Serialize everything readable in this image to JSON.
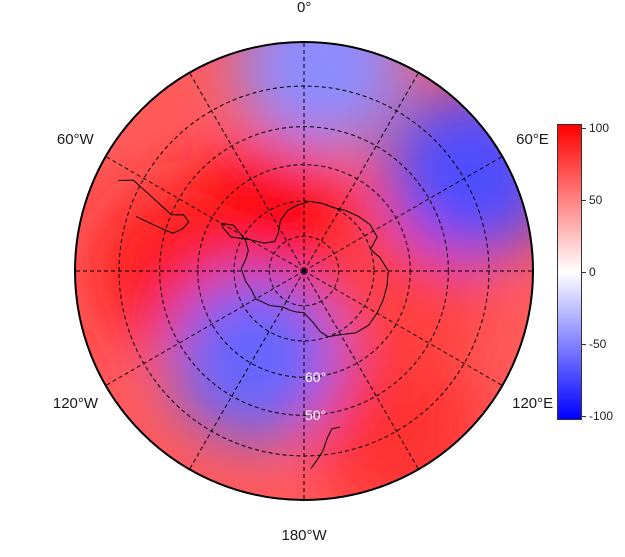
{
  "map": {
    "projection": "south-polar-stereographic",
    "longitude_labels": [
      {
        "text": "0°",
        "lon": 0
      },
      {
        "text": "60°E",
        "lon": 60
      },
      {
        "text": "120°E",
        "lon": 120
      },
      {
        "text": "180°W",
        "lon": 180
      },
      {
        "text": "120°W",
        "lon": -120
      },
      {
        "text": "60°W",
        "lon": -60
      }
    ],
    "latitude_labels": [
      {
        "text": "60°",
        "lat": -60
      },
      {
        "text": "50°",
        "lat": -50
      }
    ],
    "latitude_circles": [
      -80,
      -70,
      -60,
      -50,
      -40
    ],
    "meridians_deg": [
      0,
      30,
      60,
      90,
      120,
      150,
      180,
      210,
      240,
      270,
      300,
      330
    ],
    "boundary_lat": -30,
    "field_features": [
      {
        "label": "red-high",
        "lon": -30,
        "lat": -72,
        "value": 100
      },
      {
        "label": "red-high",
        "lon": -90,
        "lat": -55,
        "value": 90
      },
      {
        "label": "red-high",
        "lon": 150,
        "lat": -40,
        "value": 80
      },
      {
        "label": "red-high",
        "lon": 100,
        "lat": -62,
        "value": 75
      },
      {
        "label": "blue-low",
        "lon": 60,
        "lat": -38,
        "value": -70
      },
      {
        "label": "blue-low",
        "lon": -150,
        "lat": -62,
        "value": -60
      },
      {
        "label": "blue-low",
        "lon": 5,
        "lat": -35,
        "value": -45
      }
    ]
  },
  "colorbar": {
    "colors": {
      "high": "#ff0000",
      "mid": "#ffffff",
      "low": "#0000ff"
    },
    "range": [
      -100,
      100
    ],
    "ticks": [
      {
        "text": "100",
        "value": 100
      },
      {
        "text": "50",
        "value": 50
      },
      {
        "text": "0",
        "value": 0
      },
      {
        "text": "-50",
        "value": -50
      },
      {
        "text": "-100",
        "value": -100
      }
    ]
  }
}
